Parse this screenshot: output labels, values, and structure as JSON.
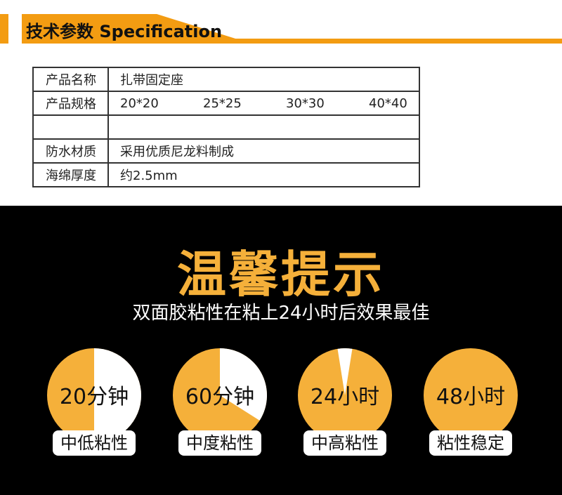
{
  "header": {
    "title": "技术参数 Specification"
  },
  "spec_table": {
    "rows": [
      {
        "key": "产品名称",
        "value": "扎带固定座"
      },
      {
        "key": "产品规格",
        "sizes": [
          "20*20",
          "25*25",
          "30*30",
          "40*40"
        ]
      },
      {
        "key": "",
        "value": ""
      },
      {
        "key": "防水材质",
        "value": "采用优质尼龙料制成"
      },
      {
        "key": "海绵厚度",
        "value": "约2.5mm"
      }
    ]
  },
  "tips": {
    "title": "温馨提示",
    "subtitle": "双面胶粘性在粘上24小时后效果最佳",
    "items": [
      {
        "time": "20分钟",
        "label": "中低粘性",
        "cured_fraction": 0.5
      },
      {
        "time": "60分钟",
        "label": "中度粘性",
        "cured_fraction": 0.66
      },
      {
        "time": "24小时",
        "label": "中高粘性",
        "cured_fraction": 0.95
      },
      {
        "time": "48小时",
        "label": "粘性稳定",
        "cured_fraction": 1.0
      }
    ]
  },
  "colors": {
    "accent": "#F39C12",
    "pie_orange": "#F5B03A",
    "pie_white": "#FFFFFF",
    "background": "#000000"
  }
}
